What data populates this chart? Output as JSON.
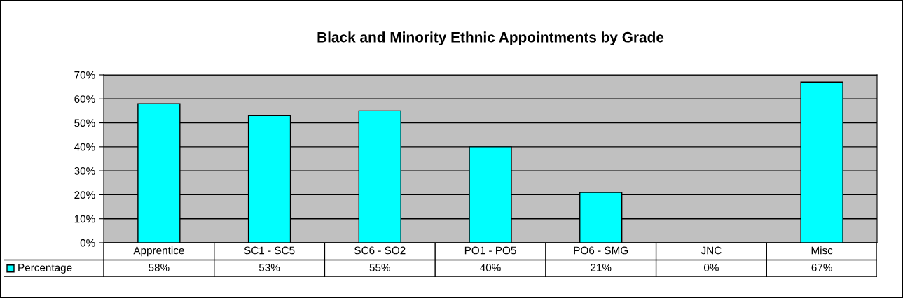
{
  "chart_data": {
    "type": "bar",
    "title": "Black and Minority Ethnic Appointments by Grade",
    "categories": [
      "Apprentice",
      "SC1 - SC5",
      "SC6 - SO2",
      "PO1 - PO5",
      "PO6 - SMG",
      "JNC",
      "Misc"
    ],
    "series": [
      {
        "name": "Percentage",
        "color": "#00ffff",
        "values": [
          58,
          53,
          55,
          40,
          21,
          0,
          67
        ],
        "value_labels": [
          "58%",
          "53%",
          "55%",
          "40%",
          "21%",
          "0%",
          "67%"
        ]
      }
    ],
    "ylim": [
      0,
      70
    ],
    "yticks": [
      {
        "value": 0,
        "label": "0%"
      },
      {
        "value": 10,
        "label": "10%"
      },
      {
        "value": 20,
        "label": "20%"
      },
      {
        "value": 30,
        "label": "30%"
      },
      {
        "value": 40,
        "label": "40%"
      },
      {
        "value": 50,
        "label": "50%"
      },
      {
        "value": 60,
        "label": "60%"
      },
      {
        "value": 70,
        "label": "70%"
      }
    ],
    "grid": "y",
    "legend": "bottom left"
  }
}
